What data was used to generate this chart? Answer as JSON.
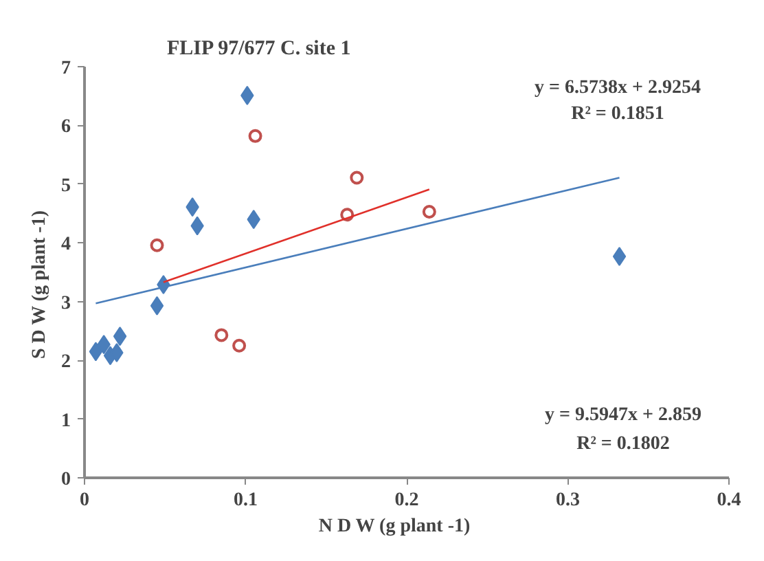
{
  "chart_data": {
    "type": "scatter",
    "title": "FLIP 97/677 C.        site 1",
    "xlabel": "N D W      (g plant -1)",
    "ylabel": "S D W      (g plant -1)",
    "xlim": [
      0,
      0.4
    ],
    "xticks": [
      0,
      0.1,
      0.2,
      0.3,
      0.4
    ],
    "ylim": [
      0,
      7
    ],
    "yticks": [
      0,
      1,
      2,
      3,
      4,
      5,
      6,
      7
    ],
    "grid": false,
    "series": [
      {
        "type": "scatter",
        "marker": "diamond",
        "color": "#4a7ebb",
        "x": [
          0.007,
          0.012,
          0.016,
          0.02,
          0.022,
          0.045,
          0.049,
          0.067,
          0.07,
          0.101,
          0.105,
          0.332
        ],
        "values": [
          2.15,
          2.27,
          2.08,
          2.13,
          2.41,
          2.93,
          3.29,
          4.61,
          4.29,
          6.51,
          4.4,
          3.77
        ]
      },
      {
        "type": "scatter",
        "marker": "circle",
        "color": "#c0504d",
        "x": [
          0.045,
          0.085,
          0.096,
          0.106,
          0.163,
          0.169,
          0.214
        ],
        "values": [
          3.96,
          2.43,
          2.25,
          5.82,
          4.48,
          5.11,
          4.53
        ]
      },
      {
        "type": "line",
        "color": "#4a7ebb",
        "x": [
          0.007,
          0.332
        ],
        "values": [
          2.97,
          5.11
        ]
      },
      {
        "type": "line",
        "color": "#e0302a",
        "x": [
          0.049,
          0.214
        ],
        "values": [
          3.33,
          4.91
        ]
      }
    ],
    "annotations": [
      "y = 6.5738x + 2.9254",
      "R² = 0.1851",
      "y = 9.5947x + 2.859",
      "R² = 0.1802"
    ]
  }
}
